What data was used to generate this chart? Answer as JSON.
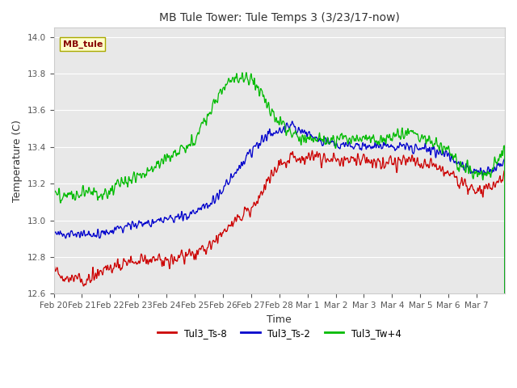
{
  "title": "MB Tule Tower: Tule Temps 3 (3/23/17-now)",
  "xlabel": "Time",
  "ylabel": "Temperature (C)",
  "ylim": [
    12.6,
    14.05
  ],
  "yticks": [
    12.6,
    12.8,
    13.0,
    13.2,
    13.4,
    13.6,
    13.8,
    14.0
  ],
  "x_labels": [
    "Feb 20",
    "Feb 21",
    "Feb 22",
    "Feb 23",
    "Feb 24",
    "Feb 25",
    "Feb 26",
    "Feb 27",
    "Feb 28",
    "Mar 1",
    "Mar 2",
    "Mar 3",
    "Mar 4",
    "Mar 5",
    "Mar 6",
    "Mar 7"
  ],
  "color_red": "#cc0000",
  "color_blue": "#0000cc",
  "color_green": "#00bb00",
  "legend_labels": [
    "Tul3_Ts-8",
    "Tul3_Ts-2",
    "Tul3_Tw+4"
  ],
  "inset_label": "MB_tule",
  "plot_bg_color": "#e8e8e8",
  "n_points": 1600
}
